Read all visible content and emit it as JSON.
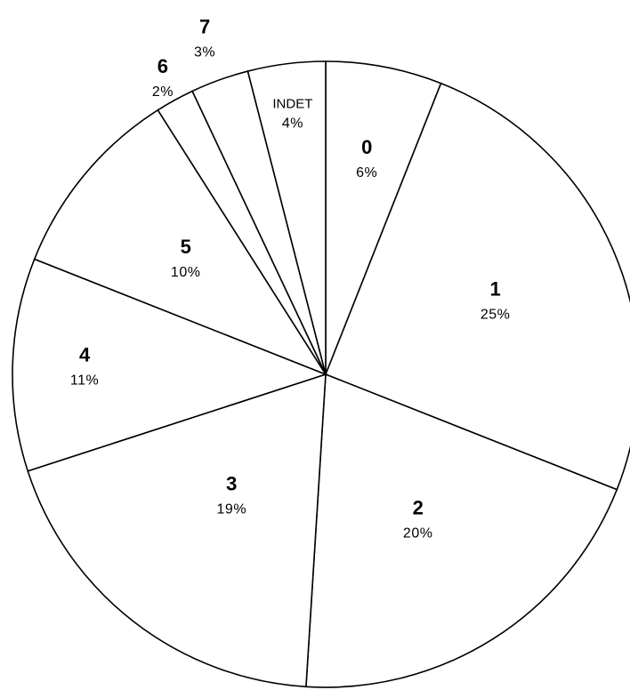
{
  "chart_data": {
    "type": "pie",
    "title": "",
    "start_angle_deg": 0,
    "direction": "clockwise",
    "slices": [
      {
        "label": "0",
        "value": 6,
        "value_label": "6%"
      },
      {
        "label": "1",
        "value": 25,
        "value_label": "25%"
      },
      {
        "label": "2",
        "value": 20,
        "value_label": "20%"
      },
      {
        "label": "3",
        "value": 19,
        "value_label": "19%"
      },
      {
        "label": "4",
        "value": 11,
        "value_label": "11%"
      },
      {
        "label": "5",
        "value": 10,
        "value_label": "10%"
      },
      {
        "label": "6",
        "value": 2,
        "value_label": "2%"
      },
      {
        "label": "7",
        "value": 3,
        "value_label": "3%"
      },
      {
        "label": "INDET",
        "value": 4,
        "value_label": "4%"
      }
    ],
    "slice_fill": "#ffffff",
    "line_color": "#000000",
    "legend": "none"
  }
}
